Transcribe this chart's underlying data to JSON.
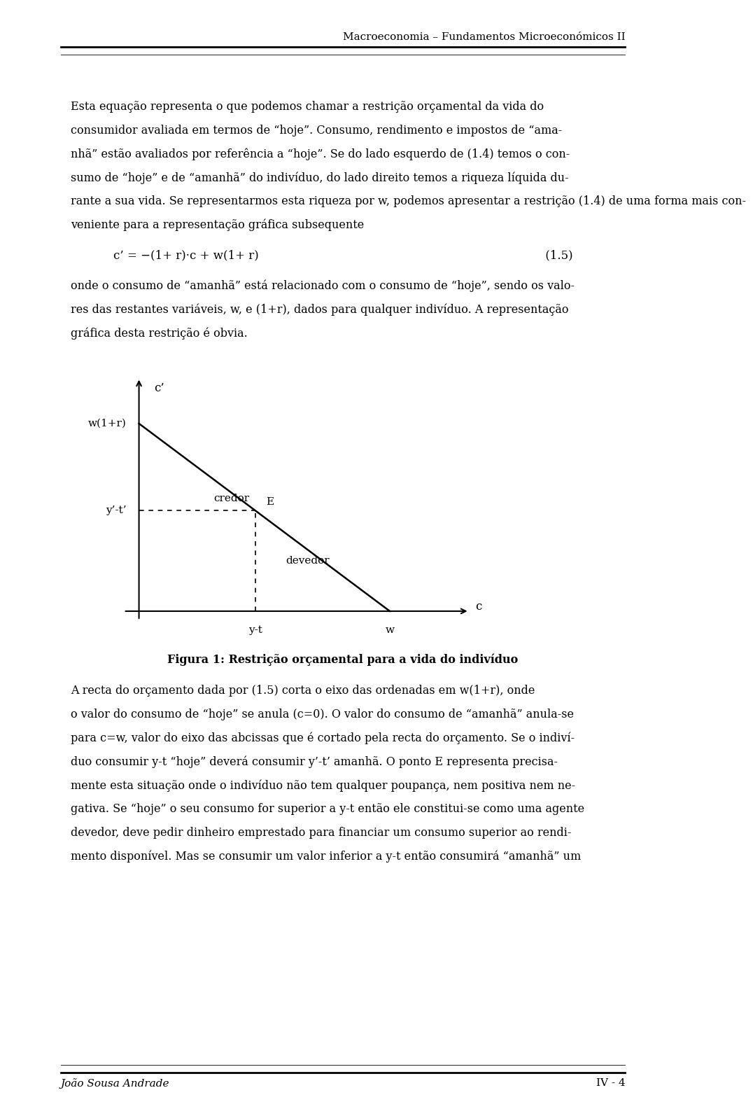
{
  "header_title": "Macroeconomia – Fundamentos Microeconómicos II",
  "footer_left": "João Sousa Andrade",
  "footer_right": "IV - 4",
  "para1_lines": [
    "Esta equação representa o que podemos chamar a restrição orçamental da vida do",
    "consumidor avaliada em termos de “hoje”. Consumo, rendimento e impostos de “ama-",
    "nhã” estão avaliados por referência a “hoje”. Se do lado esquerdo de (1.4) temos o con-",
    "sumo de “hoje” e de “amanhã” do indivíduo, do lado direito temos a riqueza líquida du-",
    "rante a sua vida. Se representarmos esta riqueza por w, podemos apresentar a restrição (1.4) de uma forma mais con-",
    "veniente para a representação gráfica subsequente"
  ],
  "equation_line": "c’ = −(1+ r)·c + w(1+ r)                                                                              (1.5)",
  "para2_lines": [
    "onde o consumo de “amanhã” está relacionado com o consumo de “hoje”, sendo os valo-",
    "res das restantes variáveis, w, e (1+r), dados para qualquer indivíduo. A representação",
    "gráfica desta restrição é obvia."
  ],
  "figura_caption": "Figura 1: Restrição orçamental para a vida do indivíduo",
  "para3_lines": [
    "A recta do orçamento dada por (1.5) corta o eixo das ordenadas em w(1+r), onde",
    "o valor do consumo de “hoje” se anula (c=0). O valor do consumo de “amanhã” anula-se",
    "para c=w, valor do eixo das abcissas que é cortado pela recta do orçamento. Se o indiví-",
    "duo consumir y-t “hoje” deverá consumir y’-t’ amanhã. O ponto E representa precisa-",
    "mente esta situação onde o indivíduo não tem qualquer poupança, nem positiva nem ne-",
    "gativa. Se “hoje” o seu consumo for superior a y-t então ele constitui-se como uma agente",
    "devedor, deve pedir dinheiro emprestado para financiar um consumo superior ao rendi-",
    "mento disponível. Mas se consumir um valor inferior a y-t então consumirá “amanhã” um"
  ],
  "background_color": "#ffffff",
  "text_color": "#000000",
  "font_size_body": 11.5,
  "font_size_header": 11.0,
  "font_size_footer": 11.0,
  "font_size_equation": 12.0,
  "font_size_caption": 11.5,
  "diagram": {
    "x_axis_label": "c",
    "y_axis_label": "c’",
    "x_intercept_label": "w",
    "y_intercept_label": "w(1+r)",
    "point_E_label": "E",
    "x_midpoint_label": "y-t",
    "y_midpoint_label": "y’-t’",
    "credor_label": "credor",
    "devedor_label": "devedor"
  }
}
